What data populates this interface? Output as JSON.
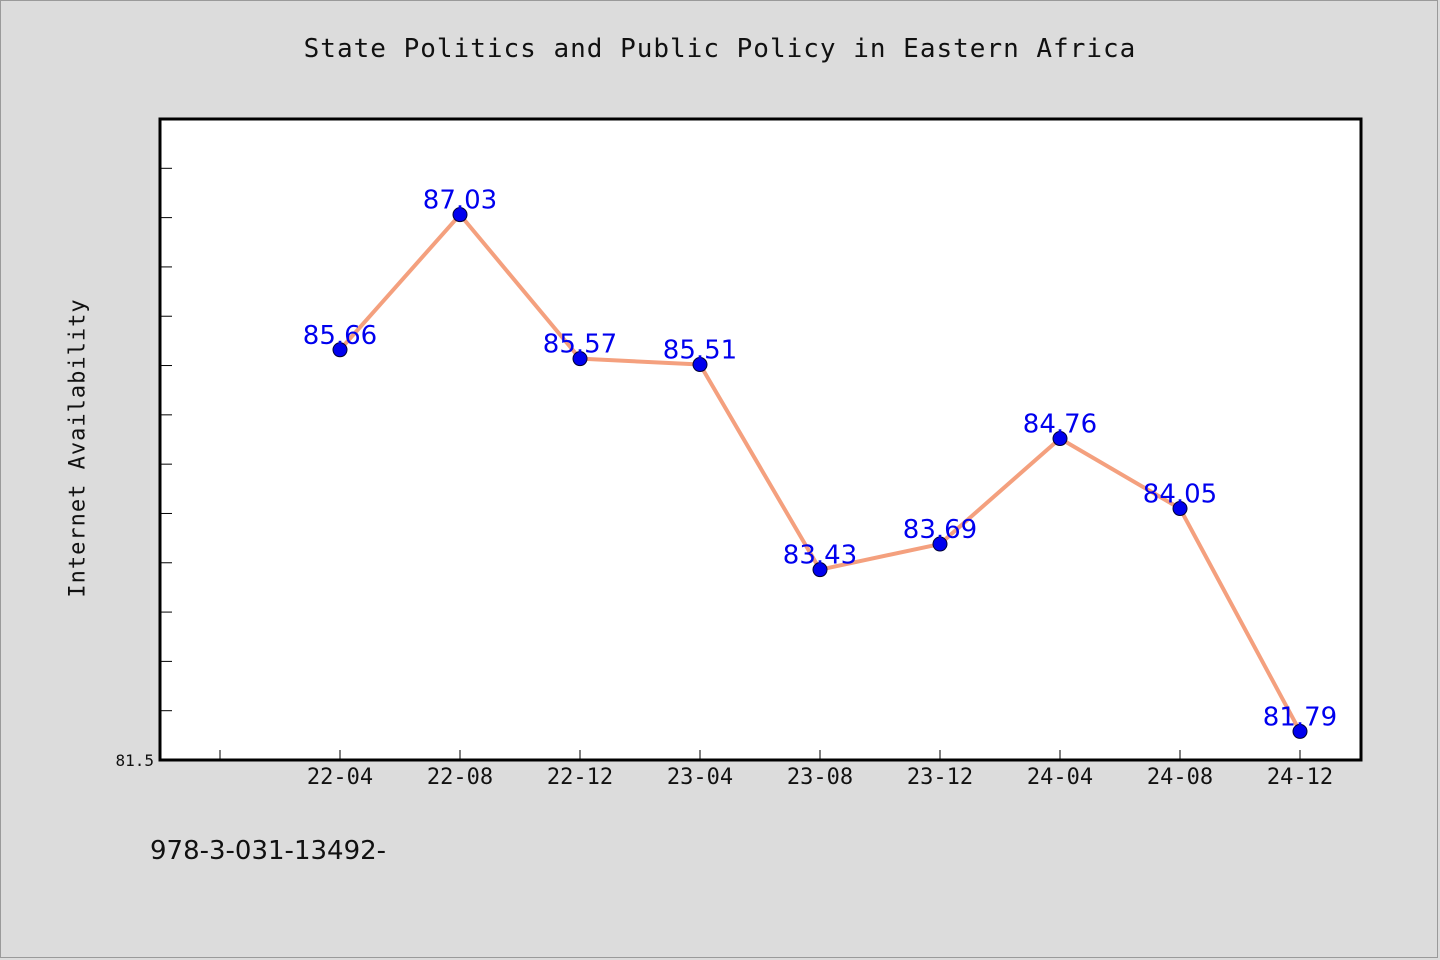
{
  "chart_data": {
    "type": "line",
    "title": "State Politics and Public Policy in Eastern Africa",
    "xlabel": "",
    "ylabel": "Internet Availability",
    "categories": [
      "22-04",
      "22-08",
      "22-12",
      "23-04",
      "23-08",
      "23-12",
      "24-04",
      "24-08",
      "24-12"
    ],
    "values": [
      85.66,
      87.03,
      85.57,
      85.51,
      83.43,
      83.69,
      84.76,
      84.05,
      81.79
    ],
    "y_tick_labels": [
      "81.5"
    ],
    "ylim": [
      81.5,
      88.0
    ],
    "grid": false,
    "line_color": "#f4a07e",
    "marker_color": "#0000ee",
    "label_color": "#0000ee"
  },
  "footer": {
    "text": "978-3-031-13492-"
  }
}
